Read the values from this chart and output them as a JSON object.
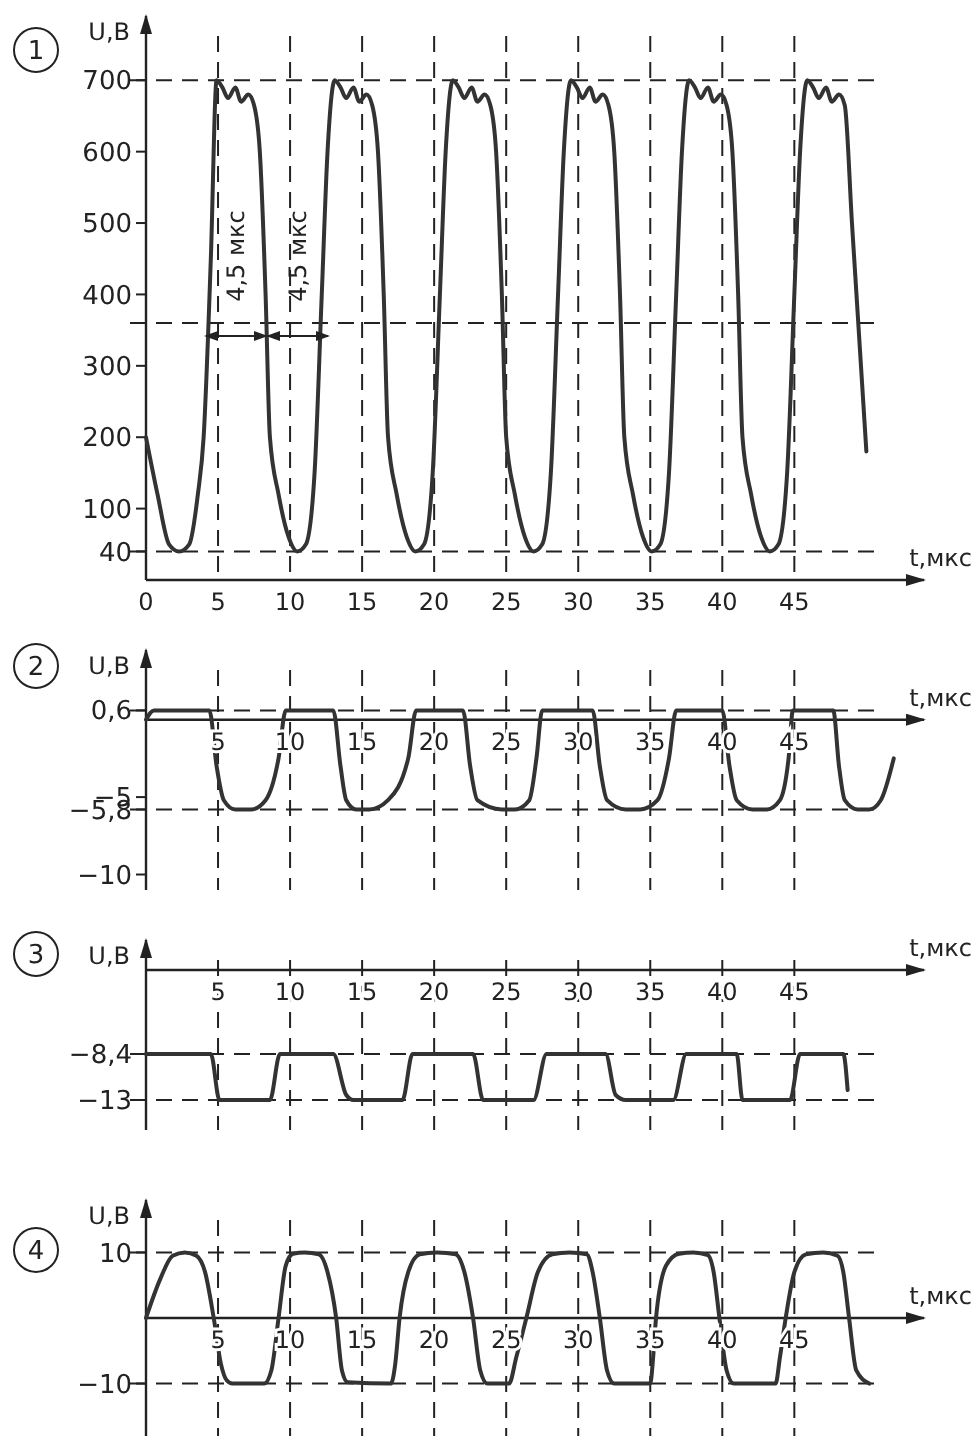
{
  "chart_data": [
    {
      "type": "line",
      "title": "1",
      "xlabel": "t,мкс",
      "ylabel": "U,B",
      "xlim": [
        0,
        54
      ],
      "ylim": [
        0,
        790
      ],
      "xticks": [
        0,
        5,
        10,
        15,
        20,
        25,
        30,
        35,
        40,
        45
      ],
      "yticks": [
        40,
        100,
        200,
        300,
        400,
        500,
        600,
        700
      ],
      "grid": "x",
      "color": "#333333",
      "x": [
        0,
        0.8,
        1.6,
        2.3,
        3.0,
        3.6,
        4.0,
        4.5,
        4.9,
        5.3,
        5.7,
        6.2,
        6.6,
        7.1,
        7.5,
        7.9,
        8.3,
        8.6,
        9.2,
        9.9,
        10.5,
        11.1,
        11.7,
        12.2,
        12.6,
        13.1,
        13.5,
        13.9,
        14.4,
        14.8,
        15.3,
        15.7,
        16.1,
        16.5,
        16.8,
        17.4,
        18.1,
        18.7,
        19.3,
        19.9,
        20.4,
        20.8,
        21.3,
        21.7,
        22.1,
        22.6,
        23.0,
        23.5,
        23.9,
        24.3,
        24.7,
        25.0,
        25.6,
        26.3,
        26.9,
        27.5,
        28.1,
        28.6,
        29.0,
        29.5,
        29.9,
        30.3,
        30.8,
        31.2,
        31.7,
        32.1,
        32.5,
        32.9,
        33.2,
        33.8,
        34.5,
        35.1,
        35.7,
        36.3,
        36.8,
        37.2,
        37.7,
        38.1,
        38.5,
        39.0,
        39.4,
        39.9,
        40.3,
        40.7,
        41.1,
        41.4,
        42.0,
        42.7,
        43.3,
        43.9,
        44.5,
        45.0,
        45.4,
        45.9,
        46.3,
        46.7,
        47.2,
        47.6,
        48.1,
        48.5,
        49.0,
        50.0
      ],
      "values": [
        200,
        120,
        50,
        40,
        50,
        120,
        200,
        450,
        700,
        690,
        675,
        690,
        670,
        680,
        665,
        600,
        400,
        200,
        120,
        60,
        40,
        50,
        150,
        400,
        600,
        700,
        690,
        675,
        690,
        670,
        680,
        665,
        600,
        400,
        200,
        120,
        60,
        40,
        50,
        150,
        400,
        600,
        700,
        690,
        675,
        690,
        670,
        680,
        665,
        600,
        400,
        200,
        120,
        60,
        40,
        50,
        150,
        400,
        600,
        700,
        690,
        675,
        690,
        670,
        680,
        665,
        600,
        400,
        200,
        120,
        60,
        40,
        50,
        150,
        400,
        600,
        700,
        690,
        675,
        690,
        670,
        680,
        665,
        600,
        400,
        200,
        120,
        60,
        40,
        50,
        150,
        400,
        600,
        700,
        690,
        675,
        690,
        670,
        680,
        665,
        500,
        180
      ],
      "ref_lines": [
        {
          "axis": "y",
          "value": 700,
          "line_style": "dashed"
        },
        {
          "axis": "y",
          "value": 360,
          "line_style": "dashed"
        },
        {
          "axis": "y",
          "value": 40,
          "line_style": "dashed"
        }
      ],
      "annotations": [
        "4,5 мкс",
        "4,5 мкс"
      ]
    },
    {
      "type": "line",
      "title": "2",
      "xlabel": "t,мкс",
      "ylabel": "U,B",
      "xlim": [
        0,
        54
      ],
      "ylim": [
        -11,
        4.5
      ],
      "xticks": [
        5,
        10,
        15,
        20,
        25,
        30,
        35,
        40,
        45
      ],
      "yticks": [
        {
          "value": 0.6,
          "label": "0,6"
        },
        {
          "value": -5,
          "label": "−5"
        },
        {
          "value": -5.8,
          "label": "−5,8"
        },
        {
          "value": -10,
          "label": "−10"
        }
      ],
      "grid": "x",
      "color": "#333333",
      "x": [
        0,
        0.55,
        4.4,
        4.9,
        5.4,
        6.2,
        7.3,
        8.3,
        9.2,
        9.7,
        13.0,
        13.5,
        13.9,
        14.6,
        15.5,
        16.8,
        18.2,
        18.75,
        22.0,
        22.5,
        23.0,
        24.7,
        25.6,
        26.6,
        27.1,
        27.5,
        31.0,
        31.5,
        32.0,
        33.3,
        34.3,
        35.5,
        36.3,
        36.8,
        40.0,
        40.5,
        41.0,
        42.1,
        43.1,
        44.0,
        44.6,
        44.9,
        47.7,
        48.1,
        48.5,
        49.4,
        50.2,
        51.0,
        51.9
      ],
      "values": [
        0,
        0.6,
        0.6,
        -3,
        -5.2,
        -5.8,
        -5.8,
        -5.2,
        -2.5,
        0.6,
        0.6,
        -3,
        -5.2,
        -5.8,
        -5.8,
        -5.2,
        -2.5,
        0.6,
        0.6,
        -3,
        -5.2,
        -5.8,
        -5.8,
        -5.2,
        -2.5,
        0.6,
        0.6,
        -3,
        -5.2,
        -5.8,
        -5.8,
        -5.2,
        -2.5,
        0.6,
        0.6,
        -3,
        -5.2,
        -5.8,
        -5.8,
        -5.2,
        -2.5,
        0.6,
        0.6,
        -3,
        -5.2,
        -5.8,
        -5.8,
        -5.2,
        -2.5
      ],
      "ref_lines": [
        {
          "axis": "y",
          "value": 0.6,
          "line_style": "dashed"
        },
        {
          "axis": "y",
          "value": -5.8,
          "line_style": "dashed"
        }
      ]
    },
    {
      "type": "line",
      "title": "3",
      "xlabel": "t,мкс",
      "ylabel": "U,B",
      "xlim": [
        0,
        54
      ],
      "ylim": [
        -16,
        3
      ],
      "xticks": [
        5,
        10,
        15,
        20,
        25,
        30,
        35,
        40,
        45
      ],
      "yticks": [
        {
          "value": -8.4,
          "label": "−8,4"
        },
        {
          "value": -13,
          "label": "−13"
        }
      ],
      "grid": "x",
      "color": "#333333",
      "x": [
        0,
        4.5,
        5.1,
        8.6,
        9.3,
        13.0,
        13.9,
        14.4,
        17.8,
        18.5,
        22.7,
        23.4,
        26.9,
        27.8,
        31.9,
        32.6,
        33.3,
        36.6,
        37.5,
        41.0,
        41.4,
        44.7,
        45.4,
        48.4,
        48.7
      ],
      "values": [
        -8.4,
        -8.4,
        -13,
        -13,
        -8.4,
        -8.4,
        -12.5,
        -13,
        -13,
        -8.4,
        -8.4,
        -13,
        -13,
        -8.4,
        -8.4,
        -12.5,
        -13,
        -13,
        -8.4,
        -8.4,
        -13,
        -13,
        -8.4,
        -8.4,
        -12
      ],
      "ref_lines": [
        {
          "axis": "y",
          "value": -8.4,
          "line_style": "dashed"
        },
        {
          "axis": "y",
          "value": -13,
          "line_style": "dashed"
        }
      ]
    },
    {
      "type": "line",
      "title": "4",
      "xlabel": "t,мкс",
      "ylabel": "U,B",
      "xlim": [
        0,
        54
      ],
      "ylim": [
        -18,
        18
      ],
      "xticks": [
        5,
        10,
        15,
        20,
        25,
        30,
        35,
        40,
        45
      ],
      "yticks": [
        10,
        {
          "value": -10,
          "label": "−10"
        }
      ],
      "grid": "x",
      "color": "#333333",
      "x": [
        0,
        1.0,
        1.85,
        2.7,
        3.5,
        4.1,
        4.7,
        5.2,
        5.6,
        6.0,
        8.2,
        8.7,
        9.2,
        9.7,
        10.2,
        11.0,
        12.0,
        12.6,
        13.2,
        13.6,
        14.0,
        17.0,
        17.3,
        17.6,
        18.2,
        19.0,
        20.2,
        21.5,
        22.1,
        22.7,
        23.2,
        23.7,
        25.2,
        25.7,
        26.4,
        27.2,
        28.2,
        29.4,
        30.6,
        31.0,
        31.5,
        32.0,
        32.5,
        35.0,
        35.2,
        35.4,
        36.1,
        37.0,
        38.0,
        39.0,
        39.4,
        39.8,
        40.3,
        40.8,
        43.7,
        44.0,
        44.4,
        45.0,
        45.8,
        47.0,
        48.0,
        48.4,
        48.8,
        49.3,
        50.2
      ],
      "values": [
        0,
        6,
        9.5,
        10,
        9.5,
        7,
        0,
        -7,
        -9.5,
        -10,
        -10,
        -8,
        0,
        8,
        9.8,
        10,
        9.7,
        7,
        0,
        -8,
        -9.8,
        -10,
        -7,
        0,
        7,
        9.7,
        10,
        9.7,
        7,
        0,
        -8,
        -10,
        -10,
        -6,
        0,
        7,
        9.7,
        10,
        9.7,
        7,
        0,
        -8,
        -10,
        -10,
        -6,
        0,
        8,
        9.8,
        10,
        9.6,
        7,
        0,
        -8,
        -10,
        -10,
        -6,
        0,
        7,
        9.7,
        10,
        9.5,
        7,
        0,
        -8,
        -10
      ],
      "ref_lines": [
        {
          "axis": "y",
          "value": 10,
          "line_style": "dashed"
        },
        {
          "axis": "y",
          "value": -10,
          "line_style": "dashed"
        }
      ]
    }
  ]
}
